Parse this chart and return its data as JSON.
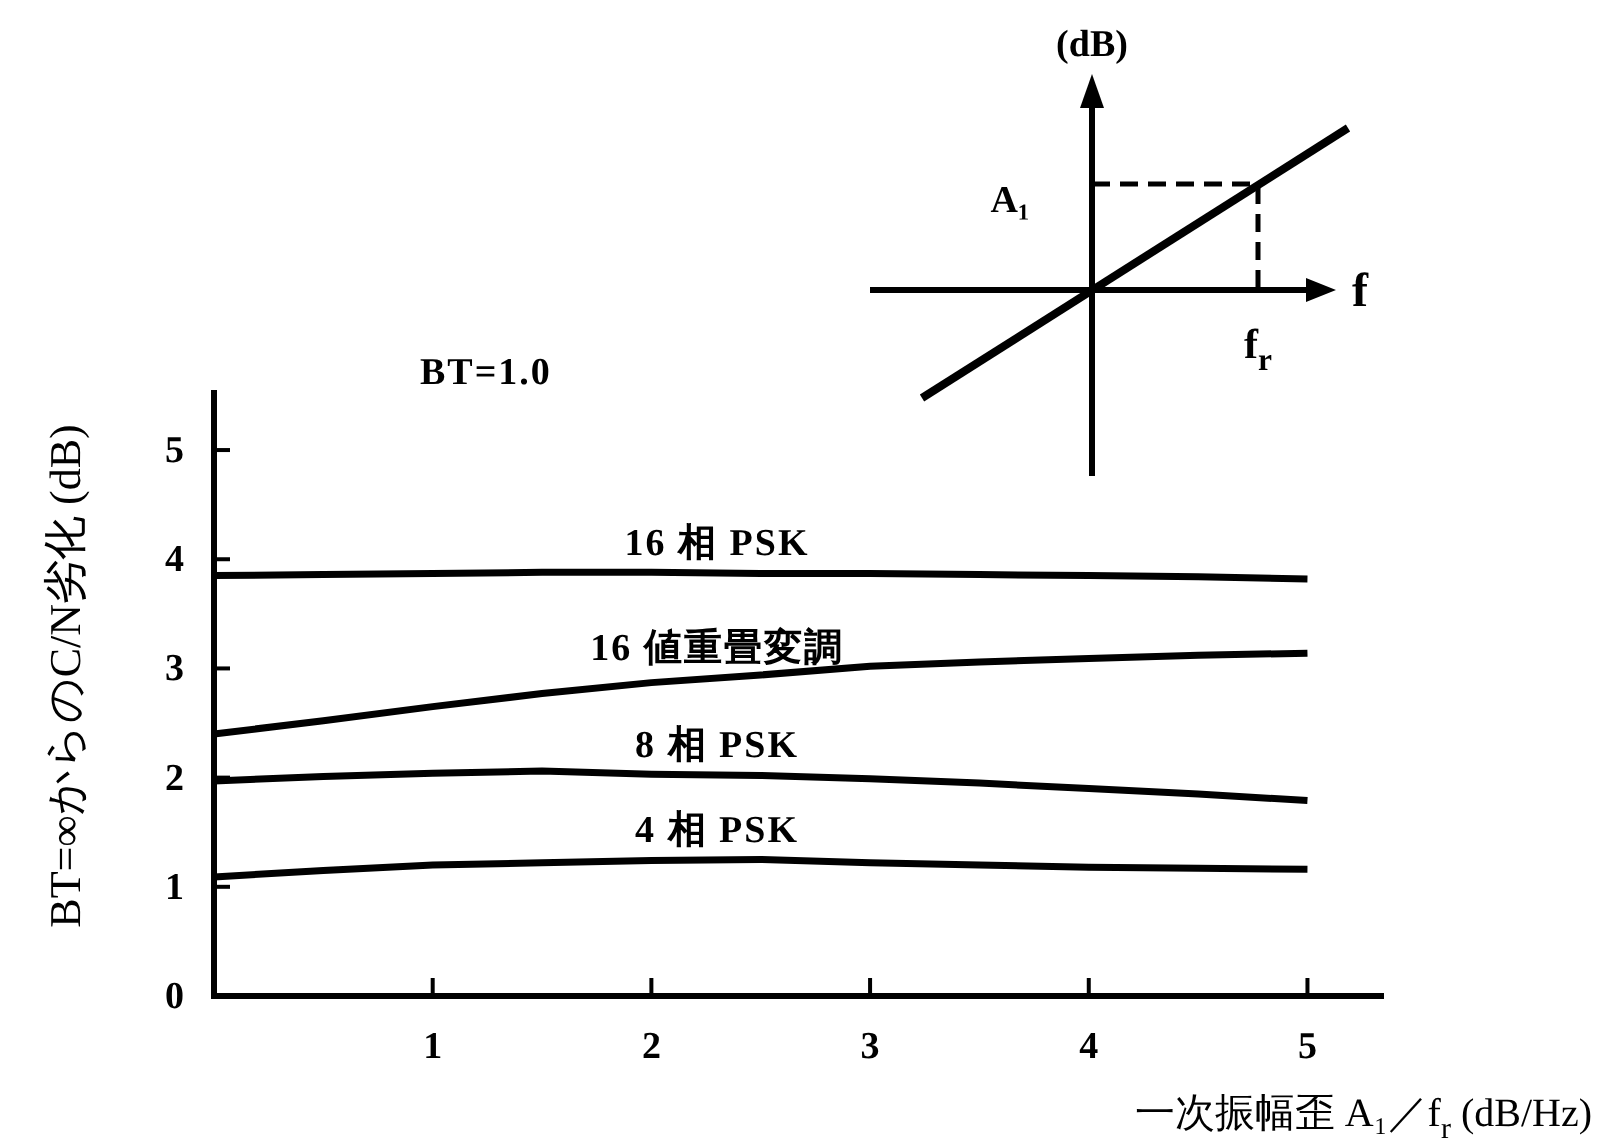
{
  "chart_data": {
    "type": "line",
    "title": "BT=1.0",
    "xlabel": "一次振幅歪 A₁／f$_{r}$ (dB/Hz)",
    "ylabel": "BT=∞からのC/N劣化 (dB)",
    "x": [
      0,
      0.5,
      1,
      1.5,
      2,
      2.5,
      3,
      3.5,
      4,
      4.5,
      5
    ],
    "xlim": [
      0,
      5.35
    ],
    "ylim": [
      0,
      5.55
    ],
    "xticks": [
      1,
      2,
      3,
      4,
      5
    ],
    "yticks": [
      0,
      1,
      2,
      3,
      4,
      5
    ],
    "line_style": "solid",
    "series": [
      {
        "name": "16 相 PSK",
        "color": "#000000",
        "values": [
          3.85,
          3.86,
          3.87,
          3.88,
          3.88,
          3.87,
          3.87,
          3.86,
          3.85,
          3.84,
          3.82
        ]
      },
      {
        "name": "16 値重畳変調",
        "color": "#000000",
        "values": [
          2.4,
          2.52,
          2.65,
          2.77,
          2.87,
          2.94,
          3.02,
          3.06,
          3.09,
          3.12,
          3.14
        ]
      },
      {
        "name": "8 相 PSK",
        "color": "#000000",
        "values": [
          1.97,
          2.01,
          2.04,
          2.06,
          2.03,
          2.02,
          1.99,
          1.95,
          1.9,
          1.85,
          1.79
        ]
      },
      {
        "name": "4 相 PSK",
        "color": "#000000",
        "values": [
          1.09,
          1.15,
          1.2,
          1.22,
          1.24,
          1.25,
          1.22,
          1.2,
          1.18,
          1.17,
          1.16
        ]
      }
    ],
    "annotations": [
      "(dB)",
      "A₁",
      "f",
      "f$_{r}$"
    ]
  }
}
